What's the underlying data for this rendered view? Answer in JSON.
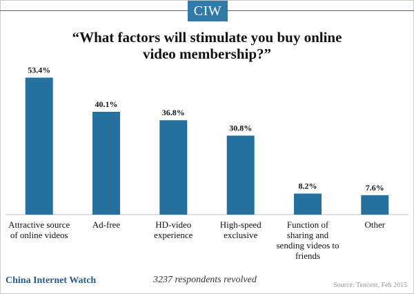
{
  "logo_text": "CIW",
  "footer": {
    "brand": "China Internet Watch",
    "note": "3237 respondents revolved",
    "source": "Source: Tencent, Feb 2015"
  },
  "colors": {
    "bar": "#24719f",
    "brand": "#2a5d86"
  },
  "chart_data": {
    "type": "bar",
    "title": "“What factors will stimulate you buy online video membership?”",
    "categories": [
      "Attractive source of online videos",
      "Ad-free",
      "HD-video experience",
      "High-speed exclusive",
      "Function of sharing and sending videos to friends",
      "Other"
    ],
    "values": [
      53.4,
      40.1,
      36.8,
      30.8,
      8.2,
      7.6
    ],
    "data_labels": [
      "53.4%",
      "40.1%",
      "36.8%",
      "30.8%",
      "8.2%",
      "7.6%"
    ],
    "xlabel": "",
    "ylabel": "",
    "ylim": [
      0,
      60
    ],
    "grid": false,
    "legend": "none"
  }
}
